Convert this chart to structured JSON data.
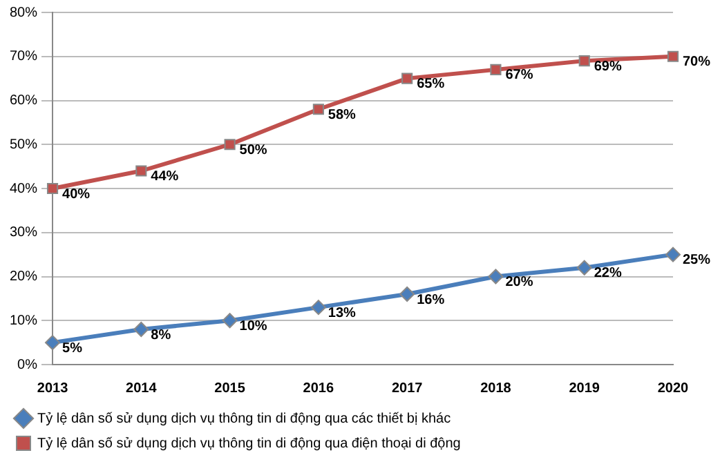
{
  "chart_data": {
    "type": "line",
    "categories": [
      "2013",
      "2014",
      "2015",
      "2016",
      "2017",
      "2018",
      "2019",
      "2020"
    ],
    "series": [
      {
        "name": "Tỷ lệ dân số sử dụng dịch vụ thông tin di động qua các thiết bị khác",
        "color": "#4a7ebb",
        "marker": "diamond",
        "values": [
          5,
          8,
          10,
          13,
          16,
          20,
          22,
          25
        ],
        "value_labels": [
          "5%",
          "8%",
          "10%",
          "13%",
          "16%",
          "20%",
          "22%",
          "25%"
        ]
      },
      {
        "name": "Tỷ lệ dân số sử dụng dịch vụ thông tin di động qua điện thoại di động",
        "color": "#c0504d",
        "marker": "square",
        "values": [
          40,
          44,
          50,
          58,
          65,
          67,
          69,
          70
        ],
        "value_labels": [
          "40%",
          "44%",
          "50%",
          "58%",
          "65%",
          "67%",
          "69%",
          "70%"
        ]
      }
    ],
    "ylim": [
      0,
      80
    ],
    "yticks": [
      {
        "value": 0,
        "label": "0%"
      },
      {
        "value": 10,
        "label": "10%"
      },
      {
        "value": 20,
        "label": "20%"
      },
      {
        "value": 30,
        "label": "30%"
      },
      {
        "value": 40,
        "label": "40%"
      },
      {
        "value": 50,
        "label": "50%"
      },
      {
        "value": 60,
        "label": "60%"
      },
      {
        "value": 70,
        "label": "70%"
      },
      {
        "value": 80,
        "label": "80%"
      }
    ],
    "grid": "y",
    "legend": "bottom",
    "line_style": "solid"
  }
}
